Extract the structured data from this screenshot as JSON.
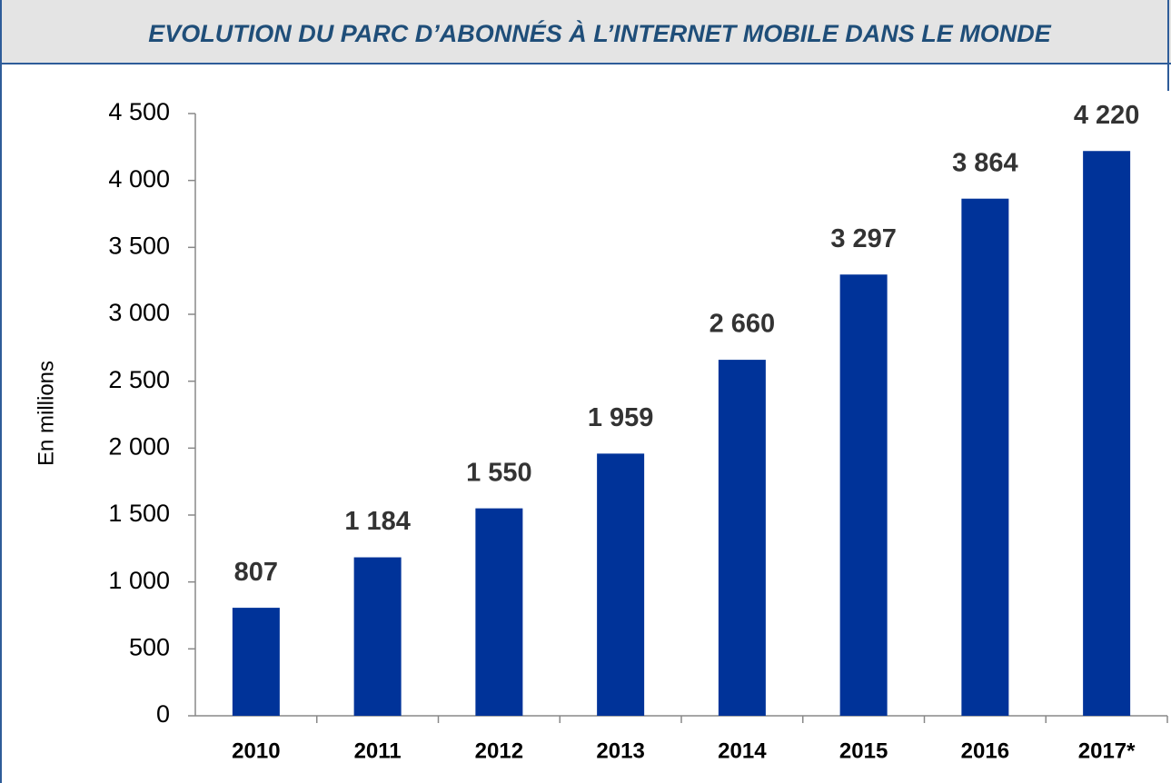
{
  "chart_data": {
    "type": "bar",
    "title": "EVOLUTION DU PARC D’ABONNÉS À L’INTERNET MOBILE DANS LE MONDE",
    "y_label": "En millions",
    "categories": [
      "2010",
      "2011",
      "2012",
      "2013",
      "2014",
      "2015",
      "2016",
      "2017*"
    ],
    "values": [
      807,
      1184,
      1550,
      1959,
      2660,
      3297,
      3864,
      4220
    ],
    "value_labels": [
      "807",
      "1 184",
      "1 550",
      "1 959",
      "2 660",
      "3 297",
      "3 864",
      "4 220"
    ],
    "color": "#003399",
    "ylim": [
      0,
      4500
    ],
    "yticks": [
      0,
      500,
      {
        "value": 1000,
        "label": "1 000"
      },
      {
        "value": 1500,
        "label": "1 500"
      },
      {
        "value": 2000,
        "label": "2 000"
      },
      {
        "value": 2500,
        "label": "2 500"
      },
      {
        "value": 3000,
        "label": "3 000"
      },
      {
        "value": 3500,
        "label": "3 500"
      },
      {
        "value": 4000,
        "label": "4 000"
      },
      {
        "value": 4500,
        "label": "4 500"
      }
    ],
    "grid": false
  }
}
